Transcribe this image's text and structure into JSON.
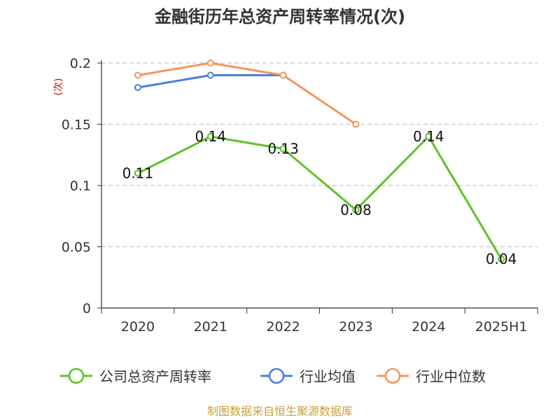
{
  "chart_data": {
    "type": "line",
    "title": "金融街历年总资产周转率情况(次)",
    "ylabel": "(次)",
    "xlabel": "",
    "categories": [
      "2020",
      "2021",
      "2022",
      "2023",
      "2024",
      "2025H1"
    ],
    "ylim": [
      0,
      0.2
    ],
    "yticks": [
      "0",
      "0.05",
      "0.1",
      "0.15",
      "0.2"
    ],
    "ytick_values": [
      0,
      0.05,
      0.1,
      0.15,
      0.2
    ],
    "grid": true,
    "legend_position": "bottom",
    "series": [
      {
        "name": "公司总资产周转率",
        "color": "#5ec229",
        "values": [
          0.11,
          0.14,
          0.13,
          0.08,
          0.14,
          0.04
        ],
        "labels": [
          "0.11",
          "0.14",
          "0.13",
          "0.08",
          "0.14",
          "0.04"
        ]
      },
      {
        "name": "行业均值",
        "color": "#4a7fdc",
        "values": [
          0.18,
          0.19,
          0.19,
          null,
          null,
          null
        ]
      },
      {
        "name": "行业中位数",
        "color": "#f5935c",
        "values": [
          0.19,
          0.2,
          0.19,
          0.15,
          null,
          null
        ]
      }
    ]
  },
  "source": "制图数据来自恒生聚源数据库"
}
